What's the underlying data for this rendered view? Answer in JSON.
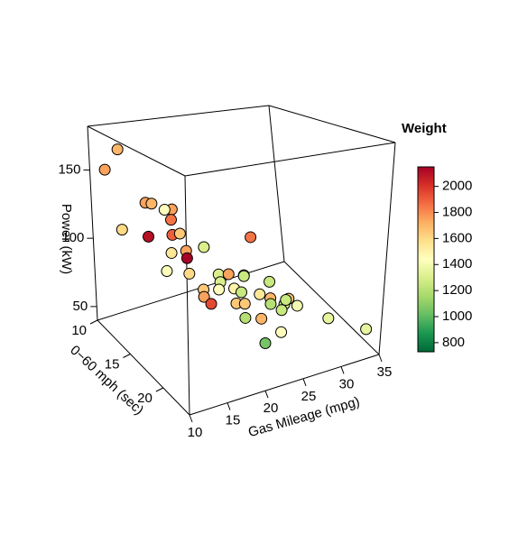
{
  "chart_data": {
    "type": "scatter3d",
    "xlabel": "Gas Mileage (mpg)",
    "ylabel": "0−60 mph (sec)",
    "zlabel": "Power (kW)",
    "xlim": [
      10,
      35
    ],
    "xticks": [
      10,
      15,
      20,
      25,
      30,
      35
    ],
    "ylim": [
      10,
      24
    ],
    "yticks": [
      10,
      15,
      20
    ],
    "zlim": [
      40,
      182
    ],
    "zticks": [
      50,
      100,
      150
    ],
    "x": [
      12.6,
      11.4,
      14.7,
      15.5,
      17.5,
      15.9,
      16.7,
      13.3,
      14.9,
      16.8,
      17.8,
      19.6,
      24.4,
      16.6,
      17.9,
      18.0,
      15.9,
      17.6,
      20.8,
      22.1,
      24.1,
      26.8,
      21.0,
      24.1,
      19.4,
      20.8,
      22.8,
      23.1,
      25.5,
      26.9,
      29.3,
      18.2,
      18.5,
      21.8,
      22.9,
      26.3,
      28.1,
      28.3,
      29.8,
      27.1,
      23.8,
      21.7,
      33.3,
      24.5,
      21.8,
      34.4
    ],
    "y": [
      11.4,
      10.7,
      12.8,
      12.8,
      13.5,
      14.2,
      14.2,
      10.7,
      12.8,
      14.2,
      14.2,
      15.6,
      17.0,
      14.2,
      14.9,
      14.9,
      14.2,
      15.6,
      16.3,
      16.3,
      16.3,
      17.0,
      16.3,
      16.3,
      15.6,
      16.3,
      16.3,
      17.0,
      17.0,
      17.0,
      17.0,
      17.0,
      17.7,
      17.7,
      17.7,
      17.7,
      17.7,
      17.7,
      17.7,
      18.4,
      19.1,
      19.1,
      18.4,
      21.2,
      21.9,
      22.6
    ],
    "z": [
      167.1,
      151.2,
      130.7,
      129.2,
      125.2,
      129,
      121,
      105,
      105.9,
      110,
      109.7,
      102.9,
      109,
      97.3,
      99.8,
      94.4,
      85.3,
      86.7,
      84.5,
      82.9,
      79.3,
      73.4,
      78.8,
      78.6,
      72.9,
      73.8,
      71.6,
      71.4,
      66.3,
      61.2,
      57,
      75.3,
      72.9,
      68.4,
      66.5,
      61.1,
      58,
      60.9,
      54.2,
      58.6,
      60.7,
      64.4,
      42.3,
      59.3,
      58.9,
      52
    ],
    "weight": [
      1700,
      1750,
      1750,
      1700,
      1750,
      1450,
      1850,
      1600,
      2100,
      1900,
      1650,
      1300,
      1850,
      1550,
      1750,
      2150,
      1450,
      1600,
      1300,
      1750,
      1700,
      1250,
      1300,
      1250,
      1650,
      1450,
      1500,
      1250,
      1550,
      1700,
      1650,
      1750,
      1950,
      1650,
      1650,
      1200,
      1250,
      1250,
      1400,
      1250,
      1700,
      1200,
      1350,
      1450,
      1050,
      1350
    ],
    "colorbar": {
      "title": "Weight",
      "lim": [
        730,
        2150
      ],
      "ticks": [
        800,
        1000,
        1200,
        1400,
        1600,
        1800,
        2000
      ],
      "palette": [
        "#006837",
        "#1a9850",
        "#66bd63",
        "#a6d96a",
        "#d9ef8b",
        "#ffffbf",
        "#fee08b",
        "#fdae61",
        "#f46d43",
        "#d73027",
        "#a50026"
      ]
    }
  }
}
